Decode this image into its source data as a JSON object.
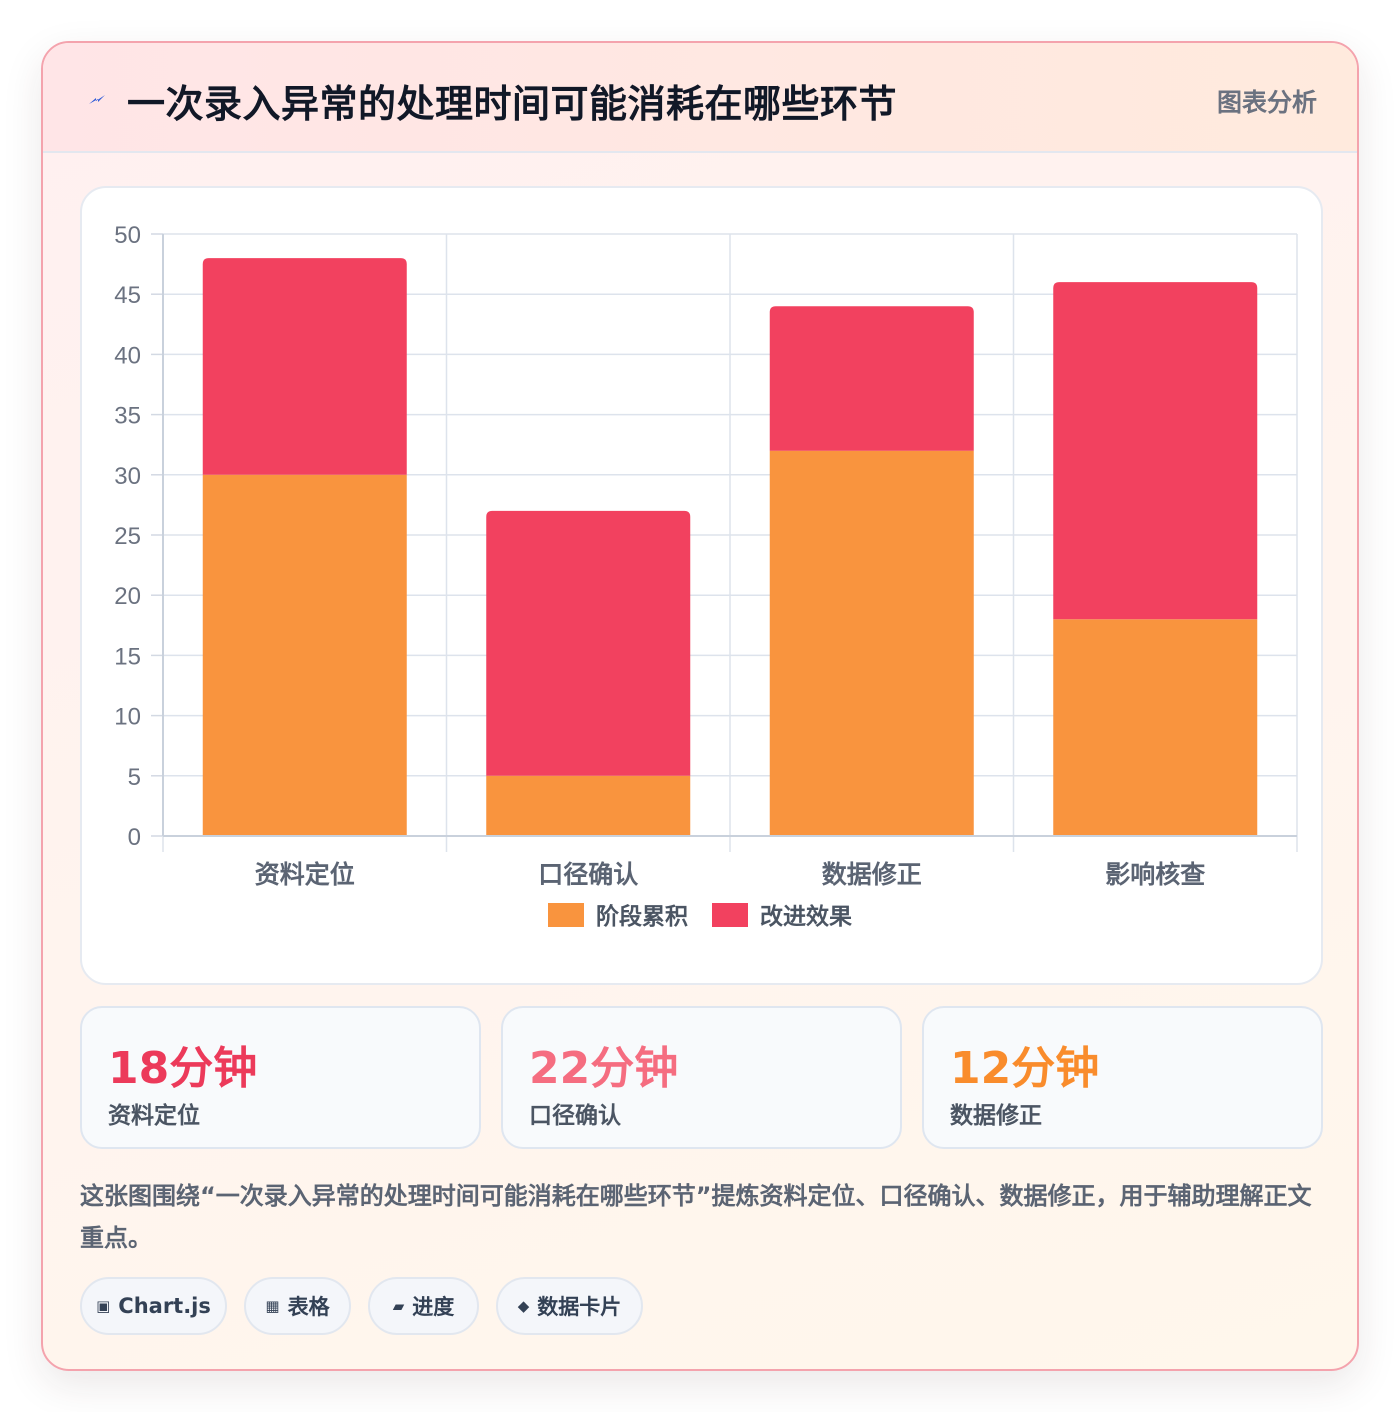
{
  "header": {
    "title": "一次录入异常的处理时间可能消耗在哪些环节",
    "tag": "图表分析"
  },
  "colors": {
    "series_a": "#f9943e",
    "series_b": "#f2415f",
    "stat_1": "#ec3a5a",
    "stat_2": "#f56d80",
    "stat_3": "#f98c2c",
    "icon_bolt": "#2f5bd8"
  },
  "chart_data": {
    "type": "bar",
    "stacked": true,
    "categories": [
      "资料定位",
      "口径确认",
      "数据修正",
      "影响核查"
    ],
    "series": [
      {
        "name": "阶段累积",
        "values": [
          30,
          5,
          32,
          18
        ]
      },
      {
        "name": "改进效果",
        "values": [
          18,
          22,
          12,
          28
        ]
      }
    ],
    "ylim": [
      0,
      50
    ],
    "yticks": [
      "0",
      "5",
      "10",
      "15",
      "20",
      "25",
      "30",
      "35",
      "40",
      "45",
      "50"
    ],
    "grid": true,
    "legend": "bottom"
  },
  "stats": [
    {
      "value": "18分钟",
      "label": "资料定位"
    },
    {
      "value": "22分钟",
      "label": "口径确认"
    },
    {
      "value": "12分钟",
      "label": "数据修正"
    }
  ],
  "caption": "这张图围绕“一次录入异常的处理时间可能消耗在哪些环节”提炼资料定位、口径确认、数据修正，用于辅助理解正文重点。",
  "tags": [
    {
      "icon": "▣",
      "icon_name": "chip-icon",
      "label": "Chart.js"
    },
    {
      "icon": "▦",
      "icon_name": "table-icon",
      "label": "表格"
    },
    {
      "icon": "▰",
      "icon_name": "progress-icon",
      "label": "进度"
    },
    {
      "icon": "◆",
      "icon_name": "diamond-icon",
      "label": "数据卡片"
    }
  ]
}
